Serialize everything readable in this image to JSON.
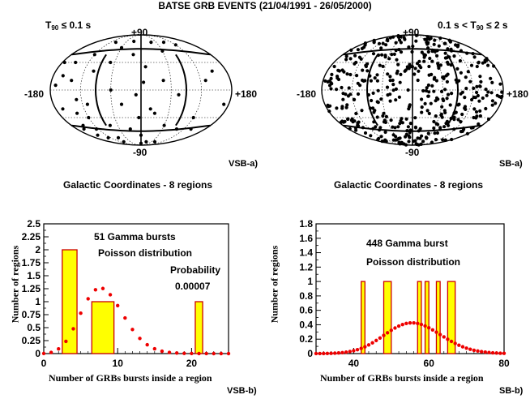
{
  "page": {
    "title": "BATSE GRB EVENTS (21/04/1991 - 26/05/2000)"
  },
  "skymaps": [
    {
      "id": "left",
      "threshold_prefix": "T",
      "threshold_sub": "90",
      "threshold_suffix": " ≤ 0.1 s",
      "top_label": "+90",
      "bottom_label": "-90",
      "left_label": "-180",
      "right_label": "+180",
      "corner_tag": "VSB-a)",
      "caption": "Galactic Coordinates - 8 regions",
      "points": [
        [
          -120,
          55
        ],
        [
          -90,
          60
        ],
        [
          -40,
          60
        ],
        [
          30,
          62
        ],
        [
          100,
          60
        ],
        [
          60,
          50
        ],
        [
          -60,
          45
        ],
        [
          120,
          40
        ],
        [
          150,
          30
        ],
        [
          160,
          15
        ],
        [
          140,
          10
        ],
        [
          170,
          5
        ],
        [
          130,
          -10
        ],
        [
          165,
          -20
        ],
        [
          150,
          -40
        ],
        [
          120,
          -30
        ],
        [
          110,
          -15
        ],
        [
          100,
          20
        ],
        [
          -150,
          20
        ],
        [
          -130,
          10
        ],
        [
          -120,
          -30
        ],
        [
          -100,
          -45
        ],
        [
          -140,
          -45
        ],
        [
          -60,
          -40
        ],
        [
          -30,
          -70
        ],
        [
          0,
          -55
        ],
        [
          30,
          -45
        ],
        [
          90,
          -60
        ],
        [
          -20,
          -20
        ],
        [
          -5,
          8
        ],
        [
          10,
          -5
        ],
        [
          40,
          -15
        ],
        [
          60,
          0
        ],
        [
          -10,
          25
        ],
        [
          -30,
          -25
        ],
        [
          5,
          -30
        ],
        [
          80,
          -40
        ],
        [
          150,
          -55
        ],
        [
          -80,
          -70
        ],
        [
          130,
          -60
        ],
        [
          -170,
          -15
        ],
        [
          175,
          30
        ],
        [
          -45,
          10
        ],
        [
          70,
          30
        ],
        [
          20,
          40
        ],
        [
          -75,
          -5
        ],
        [
          160,
          -45
        ],
        [
          125,
          -45
        ],
        [
          140,
          -25
        ],
        [
          100,
          -70
        ],
        [
          0,
          -75
        ]
      ]
    },
    {
      "id": "right",
      "threshold_prefix": "0.1 s < T",
      "threshold_sub": "90",
      "threshold_suffix": " ≤ 2 s",
      "top_label": "+90",
      "bottom_label": "-90",
      "left_label": "-180",
      "right_label": "+180",
      "corner_tag": "SB-a)",
      "caption": "Galactic Coordinates - 8 regions",
      "point_count": 448
    }
  ],
  "chart_data": [
    {
      "type": "bar",
      "panel": "VSB-b)",
      "ylabel": "Number of regions",
      "xlabel": "Number of GRBs bursts inside a region",
      "xlim": [
        0,
        25
      ],
      "ylim": [
        0,
        2.5
      ],
      "xticks": [
        "0",
        "10",
        "20"
      ],
      "yticks": [
        "0",
        "0.25",
        "0.5",
        "0.75",
        "1",
        "1.25",
        "1.5",
        "1.75",
        "2",
        "2.25",
        "2.5"
      ],
      "histogram": [
        {
          "x0": 2.5,
          "x1": 4.5,
          "count": 2
        },
        {
          "x0": 6.5,
          "x1": 9.5,
          "count": 1
        },
        {
          "x0": 20.5,
          "x1": 21.5,
          "count": 1
        }
      ],
      "poisson_series": {
        "x": [
          0,
          1,
          2,
          3,
          4,
          5,
          6,
          7,
          8,
          9,
          10,
          11,
          12,
          13,
          14,
          15,
          16,
          17,
          18,
          19,
          20,
          21,
          22,
          23,
          24,
          25
        ],
        "values": [
          0.001,
          0.011,
          0.045,
          0.118,
          0.239,
          0.389,
          0.528,
          0.615,
          0.627,
          0.567,
          0.462,
          0.343,
          0.232,
          0.146,
          0.085,
          0.046,
          0.023,
          0.011,
          0.005,
          0.002,
          0.001,
          0.0003,
          0.0001,
          0.0,
          0.0,
          0.0
        ]
      },
      "annotations": {
        "bursts": "51 Gamma bursts",
        "dist": "Poisson distribution",
        "prob_label": "Probability",
        "prob_value": "0.00007"
      }
    },
    {
      "type": "bar",
      "panel": "SB-b)",
      "ylabel": "Number of regions",
      "xlabel": "Number of GRBs bursts inside a region",
      "xlim": [
        30,
        80
      ],
      "ylim": [
        0,
        1.8
      ],
      "xticks": [
        "40",
        "60",
        "80"
      ],
      "yticks": [
        "0",
        "0.2",
        "0.4",
        "0.6",
        "0.8",
        "1",
        "1.2",
        "1.4",
        "1.6",
        "1.8"
      ],
      "histogram": [
        {
          "x0": 42,
          "x1": 43,
          "count": 1
        },
        {
          "x0": 48,
          "x1": 50,
          "count": 1
        },
        {
          "x0": 57,
          "x1": 58,
          "count": 1
        },
        {
          "x0": 59,
          "x1": 60,
          "count": 1
        },
        {
          "x0": 62,
          "x1": 63,
          "count": 1
        },
        {
          "x0": 65,
          "x1": 67,
          "count": 1
        }
      ],
      "poisson_series": {
        "x_start": 30,
        "x_end": 80,
        "step": 1,
        "mean": 56,
        "scale": 8
      },
      "annotations": {
        "bursts": "448 Gamma burst",
        "dist": "Poisson distribution"
      }
    }
  ],
  "colors": {
    "bar_fill": "#ffff00",
    "bar_edge": "#cc0000",
    "poisson": "#ee0000",
    "ink": "#000000"
  }
}
